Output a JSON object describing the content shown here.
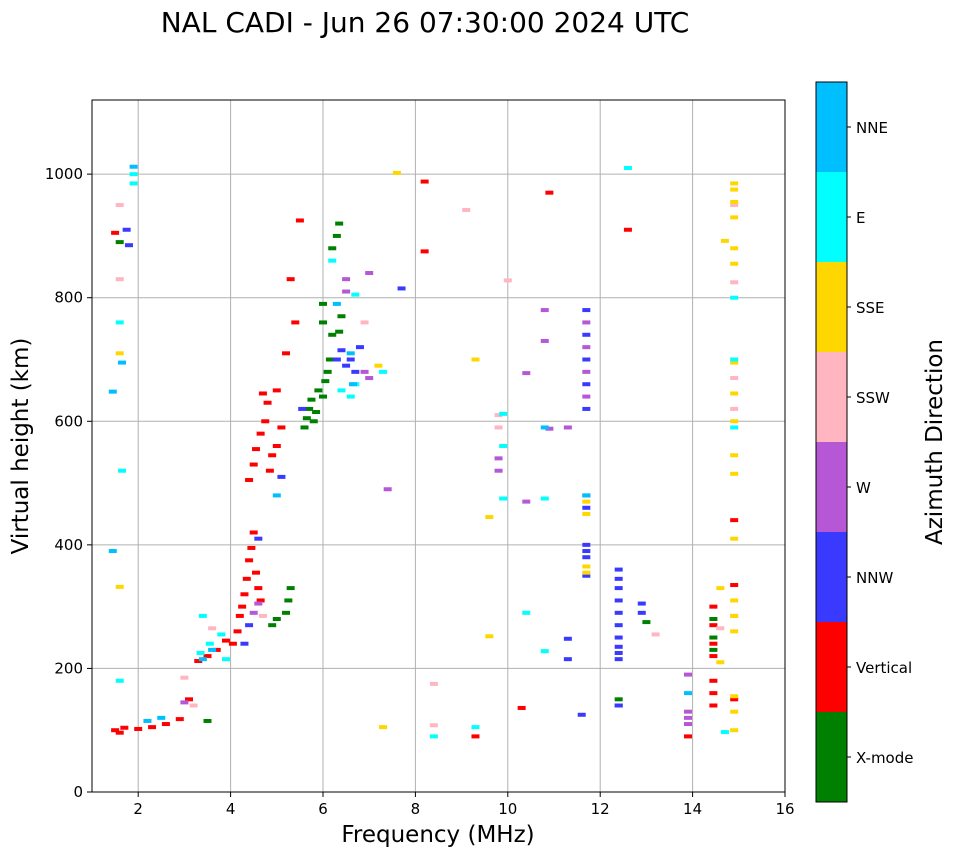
{
  "chart_data": {
    "type": "scatter",
    "title": "NAL CADI - Jun 26 07:30:00 2024 UTC",
    "xlabel": "Frequency (MHz)",
    "ylabel": "Virtual height (km)",
    "xlim": [
      1,
      16
    ],
    "ylim": [
      0,
      1120
    ],
    "xticks": [
      2,
      4,
      6,
      8,
      10,
      12,
      14,
      16
    ],
    "yticks": [
      0,
      200,
      400,
      600,
      800,
      1000
    ],
    "grid": true,
    "colorbar": {
      "label": "Azimuth Direction",
      "categories": [
        {
          "name": "X-mode",
          "color": "#008000"
        },
        {
          "name": "Vertical",
          "color": "#ff0000"
        },
        {
          "name": "NNW",
          "color": "#3a3aff"
        },
        {
          "name": "W",
          "color": "#b657d6"
        },
        {
          "name": "SSW",
          "color": "#ffb6c1"
        },
        {
          "name": "SSE",
          "color": "#ffd700"
        },
        {
          "name": "E",
          "color": "#00ffff"
        },
        {
          "name": "NNE",
          "color": "#00bfff"
        }
      ]
    },
    "series": [
      {
        "name": "Vertical",
        "points": [
          [
            1.5,
            100
          ],
          [
            1.6,
            96
          ],
          [
            1.7,
            104
          ],
          [
            2.0,
            102
          ],
          [
            2.3,
            105
          ],
          [
            2.6,
            110
          ],
          [
            2.9,
            118
          ],
          [
            3.1,
            150
          ],
          [
            3.3,
            212
          ],
          [
            3.5,
            220
          ],
          [
            3.7,
            230
          ],
          [
            3.9,
            245
          ],
          [
            4.05,
            240
          ],
          [
            4.15,
            260
          ],
          [
            4.2,
            285
          ],
          [
            4.25,
            300
          ],
          [
            4.3,
            320
          ],
          [
            4.35,
            345
          ],
          [
            4.4,
            375
          ],
          [
            4.45,
            395
          ],
          [
            4.5,
            420
          ],
          [
            4.55,
            355
          ],
          [
            4.6,
            330
          ],
          [
            4.65,
            310
          ],
          [
            4.4,
            505
          ],
          [
            4.5,
            530
          ],
          [
            4.55,
            555
          ],
          [
            4.65,
            580
          ],
          [
            4.75,
            600
          ],
          [
            4.85,
            520
          ],
          [
            4.9,
            545
          ],
          [
            5.0,
            560
          ],
          [
            5.1,
            590
          ],
          [
            4.7,
            645
          ],
          [
            4.8,
            630
          ],
          [
            5.2,
            710
          ],
          [
            5.4,
            760
          ],
          [
            5.3,
            830
          ],
          [
            5.5,
            925
          ],
          [
            5.0,
            650
          ],
          [
            1.5,
            905
          ],
          [
            8.2,
            875
          ],
          [
            8.2,
            988
          ],
          [
            10.9,
            970
          ],
          [
            12.6,
            910
          ],
          [
            14.45,
            220
          ],
          [
            14.45,
            240
          ],
          [
            14.45,
            270
          ],
          [
            14.45,
            300
          ],
          [
            14.45,
            140
          ],
          [
            14.45,
            160
          ],
          [
            14.45,
            180
          ],
          [
            9.3,
            90
          ],
          [
            13.9,
            90
          ],
          [
            14.9,
            440
          ],
          [
            10.3,
            136
          ],
          [
            14.9,
            335
          ],
          [
            14.9,
            150
          ]
        ]
      },
      {
        "name": "X-mode",
        "points": [
          [
            5.6,
            590
          ],
          [
            5.65,
            605
          ],
          [
            5.7,
            620
          ],
          [
            5.75,
            635
          ],
          [
            5.8,
            600
          ],
          [
            5.85,
            615
          ],
          [
            5.9,
            650
          ],
          [
            6.0,
            640
          ],
          [
            6.05,
            665
          ],
          [
            6.1,
            680
          ],
          [
            6.15,
            700
          ],
          [
            6.2,
            740
          ],
          [
            6.0,
            760
          ],
          [
            6.0,
            790
          ],
          [
            6.35,
            745
          ],
          [
            6.4,
            770
          ],
          [
            6.2,
            880
          ],
          [
            6.3,
            900
          ],
          [
            6.35,
            920
          ],
          [
            5.2,
            290
          ],
          [
            5.25,
            310
          ],
          [
            5.3,
            330
          ],
          [
            5.0,
            280
          ],
          [
            4.9,
            270
          ],
          [
            3.5,
            115
          ],
          [
            12.4,
            140
          ],
          [
            12.4,
            150
          ],
          [
            14.45,
            230
          ],
          [
            14.45,
            250
          ],
          [
            14.45,
            280
          ],
          [
            13.0,
            275
          ],
          [
            1.6,
            890
          ]
        ]
      },
      {
        "name": "NNW",
        "points": [
          [
            4.6,
            410
          ],
          [
            5.1,
            510
          ],
          [
            5.55,
            620
          ],
          [
            6.4,
            715
          ],
          [
            6.5,
            690
          ],
          [
            6.6,
            700
          ],
          [
            6.7,
            680
          ],
          [
            6.8,
            720
          ],
          [
            6.3,
            700
          ],
          [
            12.4,
            215
          ],
          [
            12.4,
            225
          ],
          [
            12.4,
            235
          ],
          [
            12.4,
            250
          ],
          [
            12.4,
            270
          ],
          [
            12.4,
            290
          ],
          [
            12.4,
            310
          ],
          [
            12.4,
            330
          ],
          [
            12.4,
            345
          ],
          [
            12.4,
            360
          ],
          [
            12.4,
            140
          ],
          [
            11.7,
            350
          ],
          [
            11.7,
            380
          ],
          [
            11.7,
            390
          ],
          [
            11.7,
            400
          ],
          [
            11.7,
            460
          ],
          [
            11.7,
            480
          ],
          [
            11.7,
            620
          ],
          [
            11.7,
            660
          ],
          [
            11.7,
            700
          ],
          [
            11.7,
            740
          ],
          [
            11.7,
            780
          ],
          [
            11.6,
            125
          ],
          [
            11.3,
            215
          ],
          [
            11.3,
            248
          ],
          [
            12.9,
            305
          ],
          [
            12.9,
            290
          ],
          [
            4.4,
            270
          ],
          [
            4.3,
            240
          ],
          [
            1.8,
            885
          ],
          [
            1.75,
            910
          ],
          [
            7.7,
            815
          ]
        ]
      },
      {
        "name": "W",
        "points": [
          [
            13.9,
            110
          ],
          [
            13.9,
            120
          ],
          [
            13.9,
            130
          ],
          [
            13.9,
            190
          ],
          [
            11.7,
            640
          ],
          [
            11.7,
            680
          ],
          [
            11.7,
            720
          ],
          [
            11.7,
            760
          ],
          [
            10.8,
            780
          ],
          [
            10.8,
            730
          ],
          [
            10.9,
            588
          ],
          [
            11.3,
            590
          ],
          [
            9.8,
            540
          ],
          [
            9.8,
            520
          ],
          [
            10.4,
            470
          ],
          [
            10.4,
            678
          ],
          [
            6.5,
            830
          ],
          [
            6.5,
            810
          ],
          [
            7.0,
            840
          ],
          [
            6.9,
            680
          ],
          [
            7.0,
            670
          ],
          [
            4.5,
            290
          ],
          [
            4.6,
            305
          ],
          [
            3.0,
            145
          ],
          [
            7.4,
            490
          ]
        ]
      },
      {
        "name": "SSW",
        "points": [
          [
            3.2,
            140
          ],
          [
            3.0,
            185
          ],
          [
            3.6,
            265
          ],
          [
            6.9,
            760
          ],
          [
            9.1,
            942
          ],
          [
            10.0,
            828
          ],
          [
            13.2,
            255
          ],
          [
            14.9,
            620
          ],
          [
            14.9,
            670
          ],
          [
            14.9,
            825
          ],
          [
            14.9,
            950
          ],
          [
            14.9,
            285
          ],
          [
            14.6,
            265
          ],
          [
            8.4,
            175
          ],
          [
            8.4,
            108
          ],
          [
            1.6,
            830
          ],
          [
            1.6,
            950
          ],
          [
            9.8,
            610
          ],
          [
            9.8,
            590
          ],
          [
            4.7,
            285
          ]
        ]
      },
      {
        "name": "SSE",
        "points": [
          [
            14.9,
            100
          ],
          [
            14.9,
            130
          ],
          [
            14.9,
            155
          ],
          [
            14.9,
            260
          ],
          [
            14.9,
            285
          ],
          [
            14.9,
            310
          ],
          [
            14.9,
            410
          ],
          [
            14.9,
            515
          ],
          [
            14.9,
            545
          ],
          [
            14.9,
            600
          ],
          [
            14.9,
            645
          ],
          [
            14.9,
            695
          ],
          [
            14.9,
            855
          ],
          [
            14.9,
            880
          ],
          [
            14.9,
            930
          ],
          [
            14.9,
            955
          ],
          [
            14.9,
            975
          ],
          [
            14.9,
            985
          ],
          [
            14.7,
            892
          ],
          [
            14.6,
            210
          ],
          [
            14.6,
            330
          ],
          [
            11.7,
            355
          ],
          [
            11.7,
            365
          ],
          [
            11.7,
            450
          ],
          [
            11.7,
            470
          ],
          [
            9.3,
            700
          ],
          [
            9.6,
            445
          ],
          [
            9.6,
            252
          ],
          [
            7.6,
            1002
          ],
          [
            7.2,
            690
          ],
          [
            1.6,
            332
          ],
          [
            1.6,
            710
          ],
          [
            7.3,
            105
          ]
        ]
      },
      {
        "name": "E",
        "points": [
          [
            3.35,
            225
          ],
          [
            3.55,
            240
          ],
          [
            3.8,
            255
          ],
          [
            3.4,
            285
          ],
          [
            3.9,
            215
          ],
          [
            1.9,
            985
          ],
          [
            1.9,
            1000
          ],
          [
            1.6,
            760
          ],
          [
            1.65,
            520
          ],
          [
            6.4,
            650
          ],
          [
            6.6,
            640
          ],
          [
            6.7,
            660
          ],
          [
            6.2,
            860
          ],
          [
            6.7,
            805
          ],
          [
            7.3,
            680
          ],
          [
            9.9,
            612
          ],
          [
            9.9,
            560
          ],
          [
            9.9,
            475
          ],
          [
            10.8,
            475
          ],
          [
            10.8,
            228
          ],
          [
            10.4,
            290
          ],
          [
            14.9,
            590
          ],
          [
            14.9,
            700
          ],
          [
            14.9,
            800
          ],
          [
            14.7,
            97
          ],
          [
            12.6,
            1010
          ],
          [
            8.4,
            90
          ],
          [
            9.3,
            105
          ],
          [
            1.6,
            180
          ]
        ]
      },
      {
        "name": "NNE",
        "points": [
          [
            1.45,
            390
          ],
          [
            1.45,
            648
          ],
          [
            1.65,
            695
          ],
          [
            1.9,
            1012
          ],
          [
            5.0,
            480
          ],
          [
            2.5,
            120
          ],
          [
            2.2,
            115
          ],
          [
            3.4,
            215
          ],
          [
            3.6,
            230
          ],
          [
            6.3,
            790
          ],
          [
            6.6,
            710
          ],
          [
            6.65,
            660
          ],
          [
            11.7,
            480
          ],
          [
            13.9,
            160
          ],
          [
            10.8,
            590
          ]
        ]
      }
    ]
  }
}
